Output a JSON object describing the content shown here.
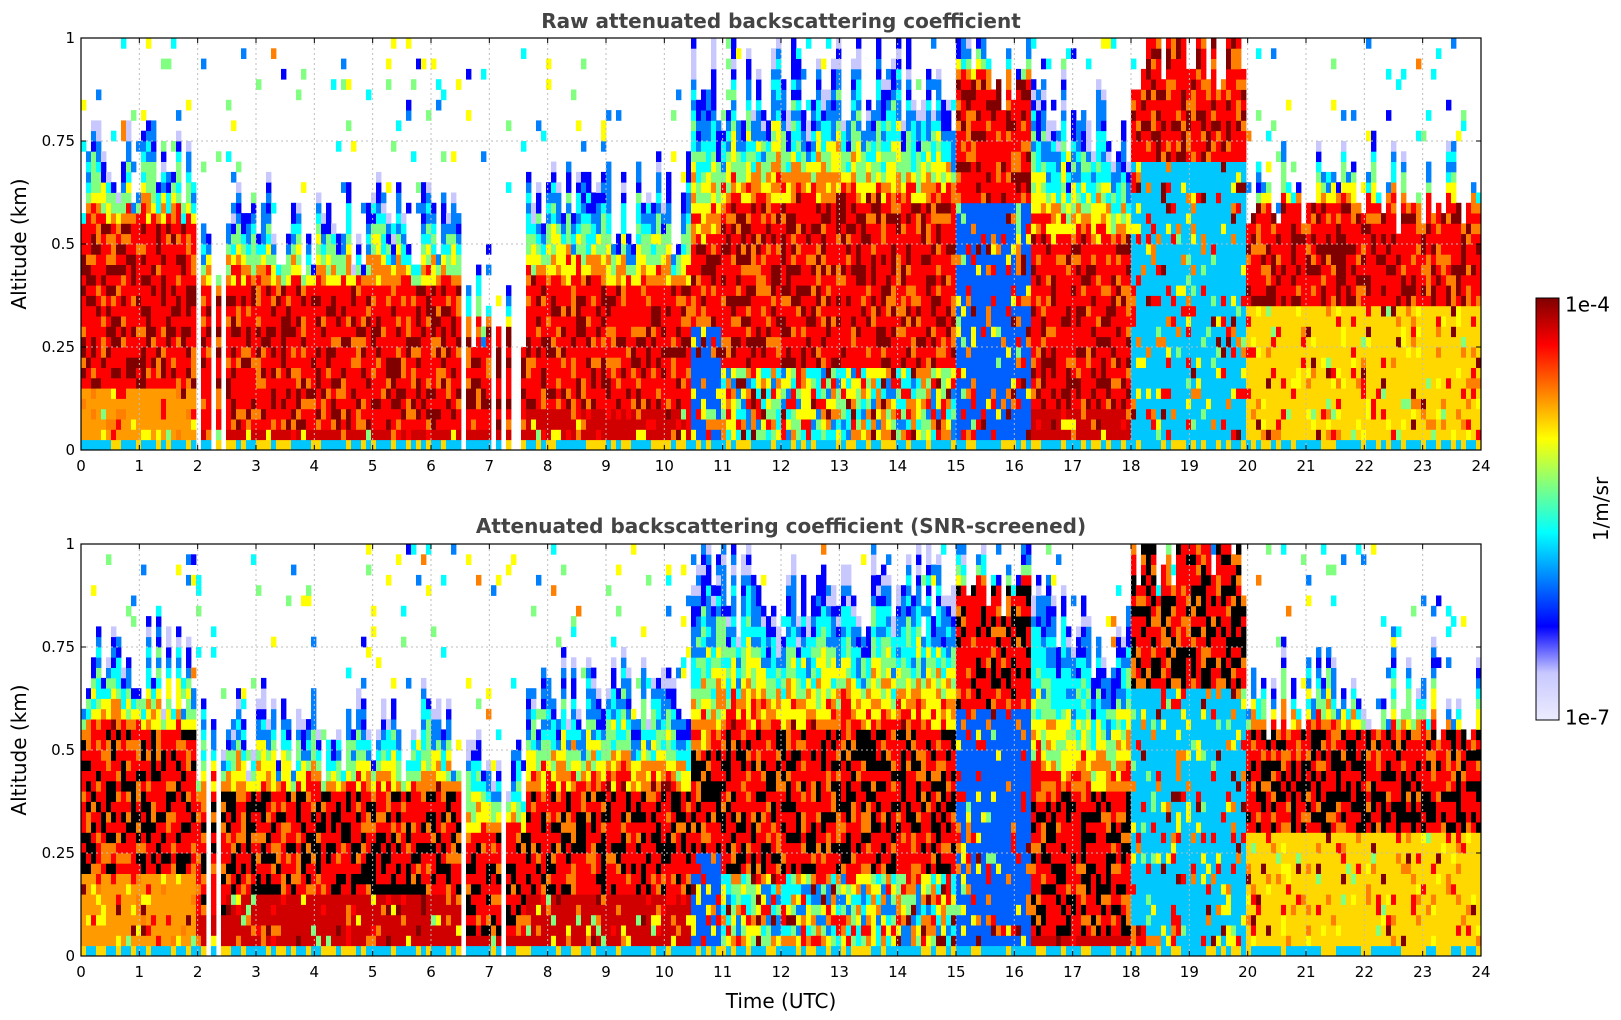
{
  "chart_data": [
    {
      "type": "heatmap",
      "id": "raw",
      "title": "Raw attenuated backscattering coefficient",
      "xlabel": "",
      "ylabel": "Altitude (km)",
      "xlim": [
        0,
        24
      ],
      "ylim": [
        0,
        1
      ],
      "x_ticks": [
        0,
        1,
        2,
        3,
        4,
        5,
        6,
        7,
        8,
        9,
        10,
        11,
        12,
        13,
        14,
        15,
        16,
        17,
        18,
        19,
        20,
        21,
        22,
        23,
        24
      ],
      "x_tick_labels": [
        "0",
        "1",
        "2",
        "3",
        "4",
        "5",
        "6",
        "7",
        "8",
        "9",
        "10",
        "11",
        "12",
        "13",
        "14",
        "15",
        "16",
        "17",
        "18",
        "19",
        "20",
        "21",
        "22",
        "23",
        "24"
      ],
      "y_ticks": [
        0,
        0.25,
        0.5,
        0.75,
        1
      ],
      "y_tick_labels": [
        "0",
        "0.25",
        "0.5",
        "0.75",
        "1"
      ],
      "grid": true,
      "screened": false,
      "segments": [
        {
          "t": [
            0.0,
            2.0
          ],
          "layer_top": 0.7,
          "core_low": 0.15,
          "core_high": 0.55,
          "near_surface": "orange"
        },
        {
          "t": [
            2.0,
            2.5
          ],
          "layer_top": 0.55,
          "core_low": 0.05,
          "core_high": 0.4,
          "near_surface": "red",
          "gaps": true
        },
        {
          "t": [
            2.5,
            6.5
          ],
          "layer_top": 0.55,
          "core_low": 0.05,
          "core_high": 0.4,
          "near_surface": "red"
        },
        {
          "t": [
            6.5,
            7.6
          ],
          "layer_top": 0.35,
          "core_low": 0.05,
          "core_high": 0.3,
          "near_surface": "red",
          "gaps": true
        },
        {
          "t": [
            7.6,
            10.5
          ],
          "layer_top": 0.6,
          "core_low": 0.1,
          "core_high": 0.4,
          "near_surface": "red"
        },
        {
          "t": [
            10.5,
            11.0
          ],
          "layer_top": 0.9,
          "core_low": 0.3,
          "core_high": 0.5,
          "near_surface": "blue"
        },
        {
          "t": [
            11.0,
            15.0
          ],
          "layer_top": 0.9,
          "core_low": 0.2,
          "core_high": 0.6,
          "near_surface": "mixed"
        },
        {
          "t": [
            15.0,
            16.3
          ],
          "layer_top": 0.95,
          "core_low": 0.6,
          "core_high": 0.9,
          "near_surface": "blue"
        },
        {
          "t": [
            16.3,
            18.0
          ],
          "layer_top": 0.8,
          "core_low": 0.1,
          "core_high": 0.5,
          "near_surface": "red"
        },
        {
          "t": [
            18.0,
            20.0
          ],
          "layer_top": 1.0,
          "core_low": 0.7,
          "core_high": 1.0,
          "near_surface": "cyan"
        },
        {
          "t": [
            20.0,
            24.0
          ],
          "layer_top": 0.65,
          "core_low": 0.35,
          "core_high": 0.6,
          "near_surface": "yellow"
        }
      ]
    },
    {
      "type": "heatmap",
      "id": "screened",
      "title": "Attenuated backscattering coefficient (SNR-screened)",
      "xlabel": "Time (UTC)",
      "ylabel": "Altitude (km)",
      "xlim": [
        0,
        24
      ],
      "ylim": [
        0,
        1
      ],
      "x_ticks": [
        0,
        1,
        2,
        3,
        4,
        5,
        6,
        7,
        8,
        9,
        10,
        11,
        12,
        13,
        14,
        15,
        16,
        17,
        18,
        19,
        20,
        21,
        22,
        23,
        24
      ],
      "x_tick_labels": [
        "0",
        "1",
        "2",
        "3",
        "4",
        "5",
        "6",
        "7",
        "8",
        "9",
        "10",
        "11",
        "12",
        "13",
        "14",
        "15",
        "16",
        "17",
        "18",
        "19",
        "20",
        "21",
        "22",
        "23",
        "24"
      ],
      "y_ticks": [
        0,
        0.25,
        0.5,
        0.75,
        1
      ],
      "y_tick_labels": [
        "0",
        "0.25",
        "0.5",
        "0.75",
        "1"
      ],
      "grid": true,
      "screened": true,
      "segments": [
        {
          "t": [
            0.0,
            2.0
          ],
          "layer_top": 0.7,
          "core_low": 0.2,
          "core_high": 0.55,
          "near_surface": "orange"
        },
        {
          "t": [
            2.0,
            2.5
          ],
          "layer_top": 0.55,
          "core_low": 0.1,
          "core_high": 0.4,
          "near_surface": "red",
          "gaps": true
        },
        {
          "t": [
            2.5,
            6.5
          ],
          "layer_top": 0.55,
          "core_low": 0.15,
          "core_high": 0.4,
          "near_surface": "red"
        },
        {
          "t": [
            6.5,
            7.6
          ],
          "layer_top": 0.45,
          "core_low": 0.05,
          "core_high": 0.3,
          "near_surface": "red",
          "gaps": true
        },
        {
          "t": [
            7.6,
            10.5
          ],
          "layer_top": 0.65,
          "core_low": 0.15,
          "core_high": 0.4,
          "near_surface": "red"
        },
        {
          "t": [
            10.5,
            11.0
          ],
          "layer_top": 0.9,
          "core_low": 0.25,
          "core_high": 0.5,
          "near_surface": "blue"
        },
        {
          "t": [
            11.0,
            15.0
          ],
          "layer_top": 0.9,
          "core_low": 0.2,
          "core_high": 0.55,
          "near_surface": "mixed"
        },
        {
          "t": [
            15.0,
            16.3
          ],
          "layer_top": 0.95,
          "core_low": 0.6,
          "core_high": 0.9,
          "near_surface": "blue"
        },
        {
          "t": [
            16.3,
            18.0
          ],
          "layer_top": 0.8,
          "core_low": 0.05,
          "core_high": 0.4,
          "near_surface": "red"
        },
        {
          "t": [
            18.0,
            20.0
          ],
          "layer_top": 1.0,
          "core_low": 0.65,
          "core_high": 1.0,
          "near_surface": "cyan"
        },
        {
          "t": [
            20.0,
            24.0
          ],
          "layer_top": 0.65,
          "core_low": 0.3,
          "core_high": 0.55,
          "near_surface": "yellow"
        }
      ]
    }
  ],
  "colorbar": {
    "label": "1/m/sr",
    "max_label": "1e-4",
    "min_label": "1e-7",
    "range": [
      1e-07,
      0.0001
    ],
    "scale": "log",
    "colormap": "jet",
    "colors": [
      "#ececff",
      "#c8c8ff",
      "#0000ff",
      "#0080ff",
      "#00ffff",
      "#80ff80",
      "#ffff00",
      "#ff8000",
      "#ff0000",
      "#800000"
    ]
  }
}
